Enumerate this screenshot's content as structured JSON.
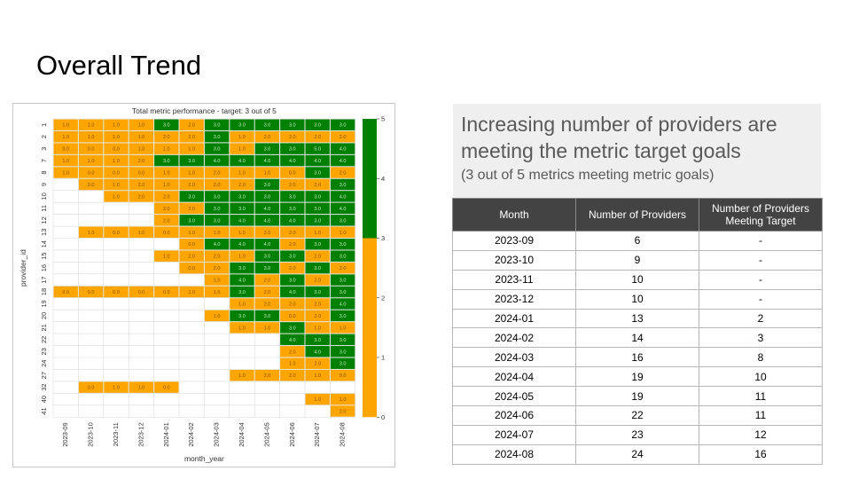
{
  "slide": {
    "title": "Overall Trend"
  },
  "colors": {
    "below_target": "#ffa500",
    "at_target": "#008000",
    "grid": "#d9d9d9"
  },
  "chart_data": {
    "type": "heatmap",
    "title": "Total metric performance - target: 3 out of 5",
    "xlabel": "month_year",
    "ylabel": "provider_id",
    "x": [
      "2023-09",
      "2023-10",
      "2023-11",
      "2023-12",
      "2024-01",
      "2024-02",
      "2024-03",
      "2024-04",
      "2024-05",
      "2024-06",
      "2024-07",
      "2024-08"
    ],
    "y": [
      "1",
      "2",
      "3",
      "7",
      "8",
      "9",
      "10",
      "11",
      "12",
      "13",
      "14",
      "15",
      "16",
      "17",
      "18",
      "19",
      "20",
      "21",
      "22",
      "23",
      "24",
      "27",
      "32",
      "40",
      "41"
    ],
    "values": [
      [
        1,
        1,
        1,
        1,
        3,
        2,
        3,
        3,
        3,
        3,
        3,
        3
      ],
      [
        1,
        1,
        1,
        1,
        2,
        2,
        3,
        1,
        2,
        2,
        2,
        2
      ],
      [
        0,
        0,
        0,
        1,
        1,
        1,
        3,
        1,
        3,
        3,
        5,
        4
      ],
      [
        1,
        1,
        1,
        2,
        3,
        3,
        4,
        4,
        4,
        4,
        4,
        4
      ],
      [
        1,
        0,
        0,
        0,
        1,
        1,
        2,
        1,
        1,
        0,
        3,
        2
      ],
      [
        null,
        0,
        1,
        2,
        1,
        2,
        2,
        2,
        3,
        2,
        2,
        3
      ],
      [
        null,
        null,
        1,
        2,
        2,
        3,
        3,
        3,
        3,
        3,
        3,
        4
      ],
      [
        null,
        null,
        null,
        null,
        2,
        2,
        3,
        3,
        4,
        3,
        3,
        4
      ],
      [
        null,
        null,
        null,
        null,
        2,
        3,
        3,
        4,
        4,
        4,
        3,
        3
      ],
      [
        null,
        1,
        0,
        1,
        0,
        1,
        1,
        1,
        2,
        2,
        1,
        1
      ],
      [
        null,
        null,
        null,
        null,
        null,
        0,
        4,
        4,
        4,
        2,
        3,
        3
      ],
      [
        null,
        null,
        null,
        null,
        1,
        2,
        2,
        1,
        3,
        3,
        2,
        3
      ],
      [
        null,
        null,
        null,
        null,
        null,
        0,
        2,
        3,
        3,
        2,
        3,
        2
      ],
      [
        null,
        null,
        null,
        null,
        null,
        null,
        1,
        4,
        2,
        3,
        2,
        3
      ],
      [
        0,
        0,
        0,
        0,
        0,
        1,
        1,
        3,
        2,
        4,
        3,
        3
      ],
      [
        null,
        null,
        null,
        null,
        null,
        null,
        null,
        1,
        2,
        2,
        2,
        4
      ],
      [
        null,
        null,
        null,
        null,
        null,
        null,
        1,
        3,
        3,
        0,
        2,
        3
      ],
      [
        null,
        null,
        null,
        null,
        null,
        null,
        null,
        1,
        1,
        3,
        1,
        1
      ],
      [
        null,
        null,
        null,
        null,
        null,
        null,
        null,
        null,
        null,
        4,
        3,
        3
      ],
      [
        null,
        null,
        null,
        null,
        null,
        null,
        null,
        null,
        null,
        2,
        4,
        3
      ],
      [
        null,
        null,
        null,
        null,
        null,
        null,
        null,
        null,
        null,
        1,
        2,
        3
      ],
      [
        null,
        null,
        null,
        null,
        null,
        null,
        null,
        1,
        2,
        2,
        1,
        0
      ],
      [
        null,
        0,
        1,
        1,
        0,
        null,
        null,
        null,
        null,
        null,
        null,
        null
      ],
      [
        null,
        null,
        null,
        null,
        null,
        null,
        null,
        null,
        null,
        null,
        1,
        1
      ],
      [
        null,
        null,
        null,
        null,
        null,
        null,
        null,
        null,
        null,
        null,
        null,
        2
      ]
    ],
    "cell_labels": [
      [
        "1.0",
        "1.0",
        "1.0",
        "1.0",
        "3.0",
        "2.0",
        "3.0",
        "3.0",
        "3.0",
        "3.0",
        "3.0",
        "3.0"
      ],
      [
        "1.0",
        "1.0",
        "1.0",
        "1.0",
        "2.0",
        "2.0",
        "3.0",
        "1.0",
        "2.0",
        "2.0",
        "2.0",
        "2.0"
      ],
      [
        "0.0",
        "0.0",
        "0.0",
        "1.0",
        "1.0",
        "1.0",
        "3.0",
        "1.0",
        "3.0",
        "3.0",
        "5.0",
        "4.0"
      ],
      [
        "1.0",
        "1.0",
        "1.0",
        "2.0",
        "3.0",
        "3.0",
        "4.0",
        "4.0",
        "4.0",
        "4.0",
        "4.0",
        "4.0"
      ],
      [
        "1.0",
        "0.0",
        "0.0",
        "0.0",
        "1.0",
        "1.0",
        "2.0",
        "1.0",
        "1.0",
        "0.0",
        "3.0",
        "2.0"
      ],
      [
        null,
        "0.0",
        "1.0",
        "2.0",
        "1.0",
        "2.0",
        "2.0",
        "2.0",
        "3.0",
        "2.0",
        "2.0",
        "3.0"
      ],
      [
        null,
        null,
        "1.0",
        "2.0",
        "2.0",
        "3.0",
        "3.0",
        "3.0",
        "3.0",
        "3.0",
        "3.0",
        "4.0"
      ],
      [
        null,
        null,
        null,
        null,
        "2.0",
        "2.0",
        "3.0",
        "3.0",
        "4.0",
        "3.0",
        "3.0",
        "4.0"
      ],
      [
        null,
        null,
        null,
        null,
        "2.0",
        "3.0",
        "3.0",
        "4.0",
        "4.0",
        "4.0",
        "3.0",
        "3.0"
      ],
      [
        null,
        "1.0",
        "0.0",
        "1.0",
        "0.0",
        "1.0",
        "1.0",
        "1.0",
        "2.0",
        "2.0",
        "1.0",
        "1.0"
      ],
      [
        null,
        null,
        null,
        null,
        null,
        "0.0",
        "4.0",
        "4.0",
        "4.0",
        "2.0",
        "3.0",
        "3.0"
      ],
      [
        null,
        null,
        null,
        null,
        "1.0",
        "2.0",
        "2.0",
        "1.0",
        "3.0",
        "3.0",
        "2.0",
        "3.0"
      ],
      [
        null,
        null,
        null,
        null,
        null,
        "0.0",
        "2.0",
        "3.0",
        "3.0",
        "2.0",
        "3.0",
        "2.0"
      ],
      [
        null,
        null,
        null,
        null,
        null,
        null,
        "1.0",
        "4.0",
        "2.0",
        "3.0",
        "2.0",
        "3.0"
      ],
      [
        "0.0",
        "0.0",
        "0.0",
        "0.0",
        "0.0",
        "1.0",
        "1.0",
        "3.0",
        "2.0",
        "4.0",
        "3.0",
        "3.0"
      ],
      [
        null,
        null,
        null,
        null,
        null,
        null,
        null,
        "1.0",
        "2.0",
        "2.0",
        "2.0",
        "4.0"
      ],
      [
        null,
        null,
        null,
        null,
        null,
        null,
        "1.0",
        "3.0",
        "3.0",
        "0.0",
        "2.0",
        "3.0"
      ],
      [
        null,
        null,
        null,
        null,
        null,
        null,
        null,
        "1.0",
        "1.0",
        "3.0",
        "1.0",
        "1.0"
      ],
      [
        null,
        null,
        null,
        null,
        null,
        null,
        null,
        null,
        null,
        "4.0",
        "3.0",
        "3.0"
      ],
      [
        null,
        null,
        null,
        null,
        null,
        null,
        null,
        null,
        null,
        "2.0",
        "4.0",
        "3.0"
      ],
      [
        null,
        null,
        null,
        null,
        null,
        null,
        null,
        null,
        null,
        "1.0",
        "2.0",
        "3.0"
      ],
      [
        null,
        null,
        null,
        null,
        null,
        null,
        null,
        "1.0",
        "2.0",
        "2.0",
        "1.0",
        "0.0"
      ],
      [
        null,
        "0.0",
        "1.0",
        "1.0",
        "0.0",
        null,
        null,
        null,
        null,
        null,
        null,
        null
      ],
      [
        null,
        null,
        null,
        null,
        null,
        null,
        null,
        null,
        null,
        null,
        "1.0",
        "1.0"
      ],
      [
        null,
        null,
        null,
        null,
        null,
        null,
        null,
        null,
        null,
        null,
        null,
        "2.0"
      ]
    ],
    "target": 3,
    "colorbar": {
      "ticks": [
        "0",
        "1",
        "2",
        "3",
        "4",
        "5"
      ],
      "range": [
        0,
        5
      ]
    },
    "grid": true
  },
  "callout": {
    "headline": "Increasing number of providers are meeting the metric target goals",
    "sub": "(3 out of 5 metrics meeting metric goals)"
  },
  "table": {
    "headers": [
      "Month",
      "Number of Providers",
      "Number of Providers Meeting Target"
    ],
    "rows": [
      [
        "2023-09",
        "6",
        "-"
      ],
      [
        "2023-10",
        "9",
        "-"
      ],
      [
        "2023-11",
        "10",
        "-"
      ],
      [
        "2023-12",
        "10",
        "-"
      ],
      [
        "2024-01",
        "13",
        "2"
      ],
      [
        "2024-02",
        "14",
        "3"
      ],
      [
        "2024-03",
        "16",
        "8"
      ],
      [
        "2024-04",
        "19",
        "10"
      ],
      [
        "2024-05",
        "19",
        "11"
      ],
      [
        "2024-06",
        "22",
        "11"
      ],
      [
        "2024-07",
        "23",
        "12"
      ],
      [
        "2024-08",
        "24",
        "16"
      ]
    ]
  }
}
